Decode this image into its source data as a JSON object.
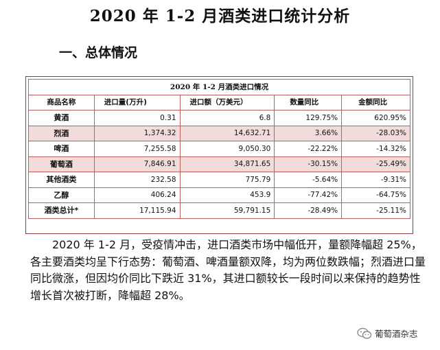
{
  "document": {
    "title": "2020 年 1-2 月酒类进口统计分析",
    "section_heading": "一、总体情况"
  },
  "table": {
    "caption": "2020 年 1-2 月酒类进口情况",
    "headers": [
      "商品名称",
      "进口量(万升)",
      "进口额（万美元）",
      "数量同比",
      "金额同比"
    ],
    "rows": [
      {
        "name": "黄酒",
        "volume": "0.31",
        "value": "6.8",
        "qty_yoy": "129.75%",
        "amt_yoy": "620.95%",
        "shaded": false
      },
      {
        "name": "烈酒",
        "volume": "1,374.32",
        "value": "14,632.71",
        "qty_yoy": "3.66%",
        "amt_yoy": "-28.03%",
        "shaded": true
      },
      {
        "name": "啤酒",
        "volume": "7,255.58",
        "value": "9,050.30",
        "qty_yoy": "-22.22%",
        "amt_yoy": "-14.32%",
        "shaded": false
      },
      {
        "name": "葡萄酒",
        "volume": "7,846.91",
        "value": "34,871.65",
        "qty_yoy": "-30.15%",
        "amt_yoy": "-25.49%",
        "shaded": true
      },
      {
        "name": "其他酒类",
        "volume": "232.58",
        "value": "775.79",
        "qty_yoy": "-5.64%",
        "amt_yoy": "-9.31%",
        "shaded": false
      },
      {
        "name": "乙醇",
        "volume": "406.24",
        "value": "453.9",
        "qty_yoy": "-77.42%",
        "amt_yoy": "-64.75%",
        "shaded": false
      },
      {
        "name": "酒类总计*",
        "volume": "17,115.94",
        "value": "59,791.15",
        "qty_yoy": "-28.49%",
        "amt_yoy": "-25.11%",
        "shaded": false
      }
    ]
  },
  "paragraph": "2020 年 1-2 月，受疫情冲击，进口酒类市场中幅低开，量额降幅超 25%，各主要酒类均呈下行态势：葡萄酒、啤酒量额双降，均为两位数跌幅；烈酒进口量同比微涨，但因均价同比下跌近 31%，其进口额较长一段时间以来保持的趋势性增长首次被打断，降幅超 28%。",
  "watermark": {
    "text": "葡萄酒杂志",
    "icon": "wechat-icon",
    "color": "#8c8c8c"
  }
}
